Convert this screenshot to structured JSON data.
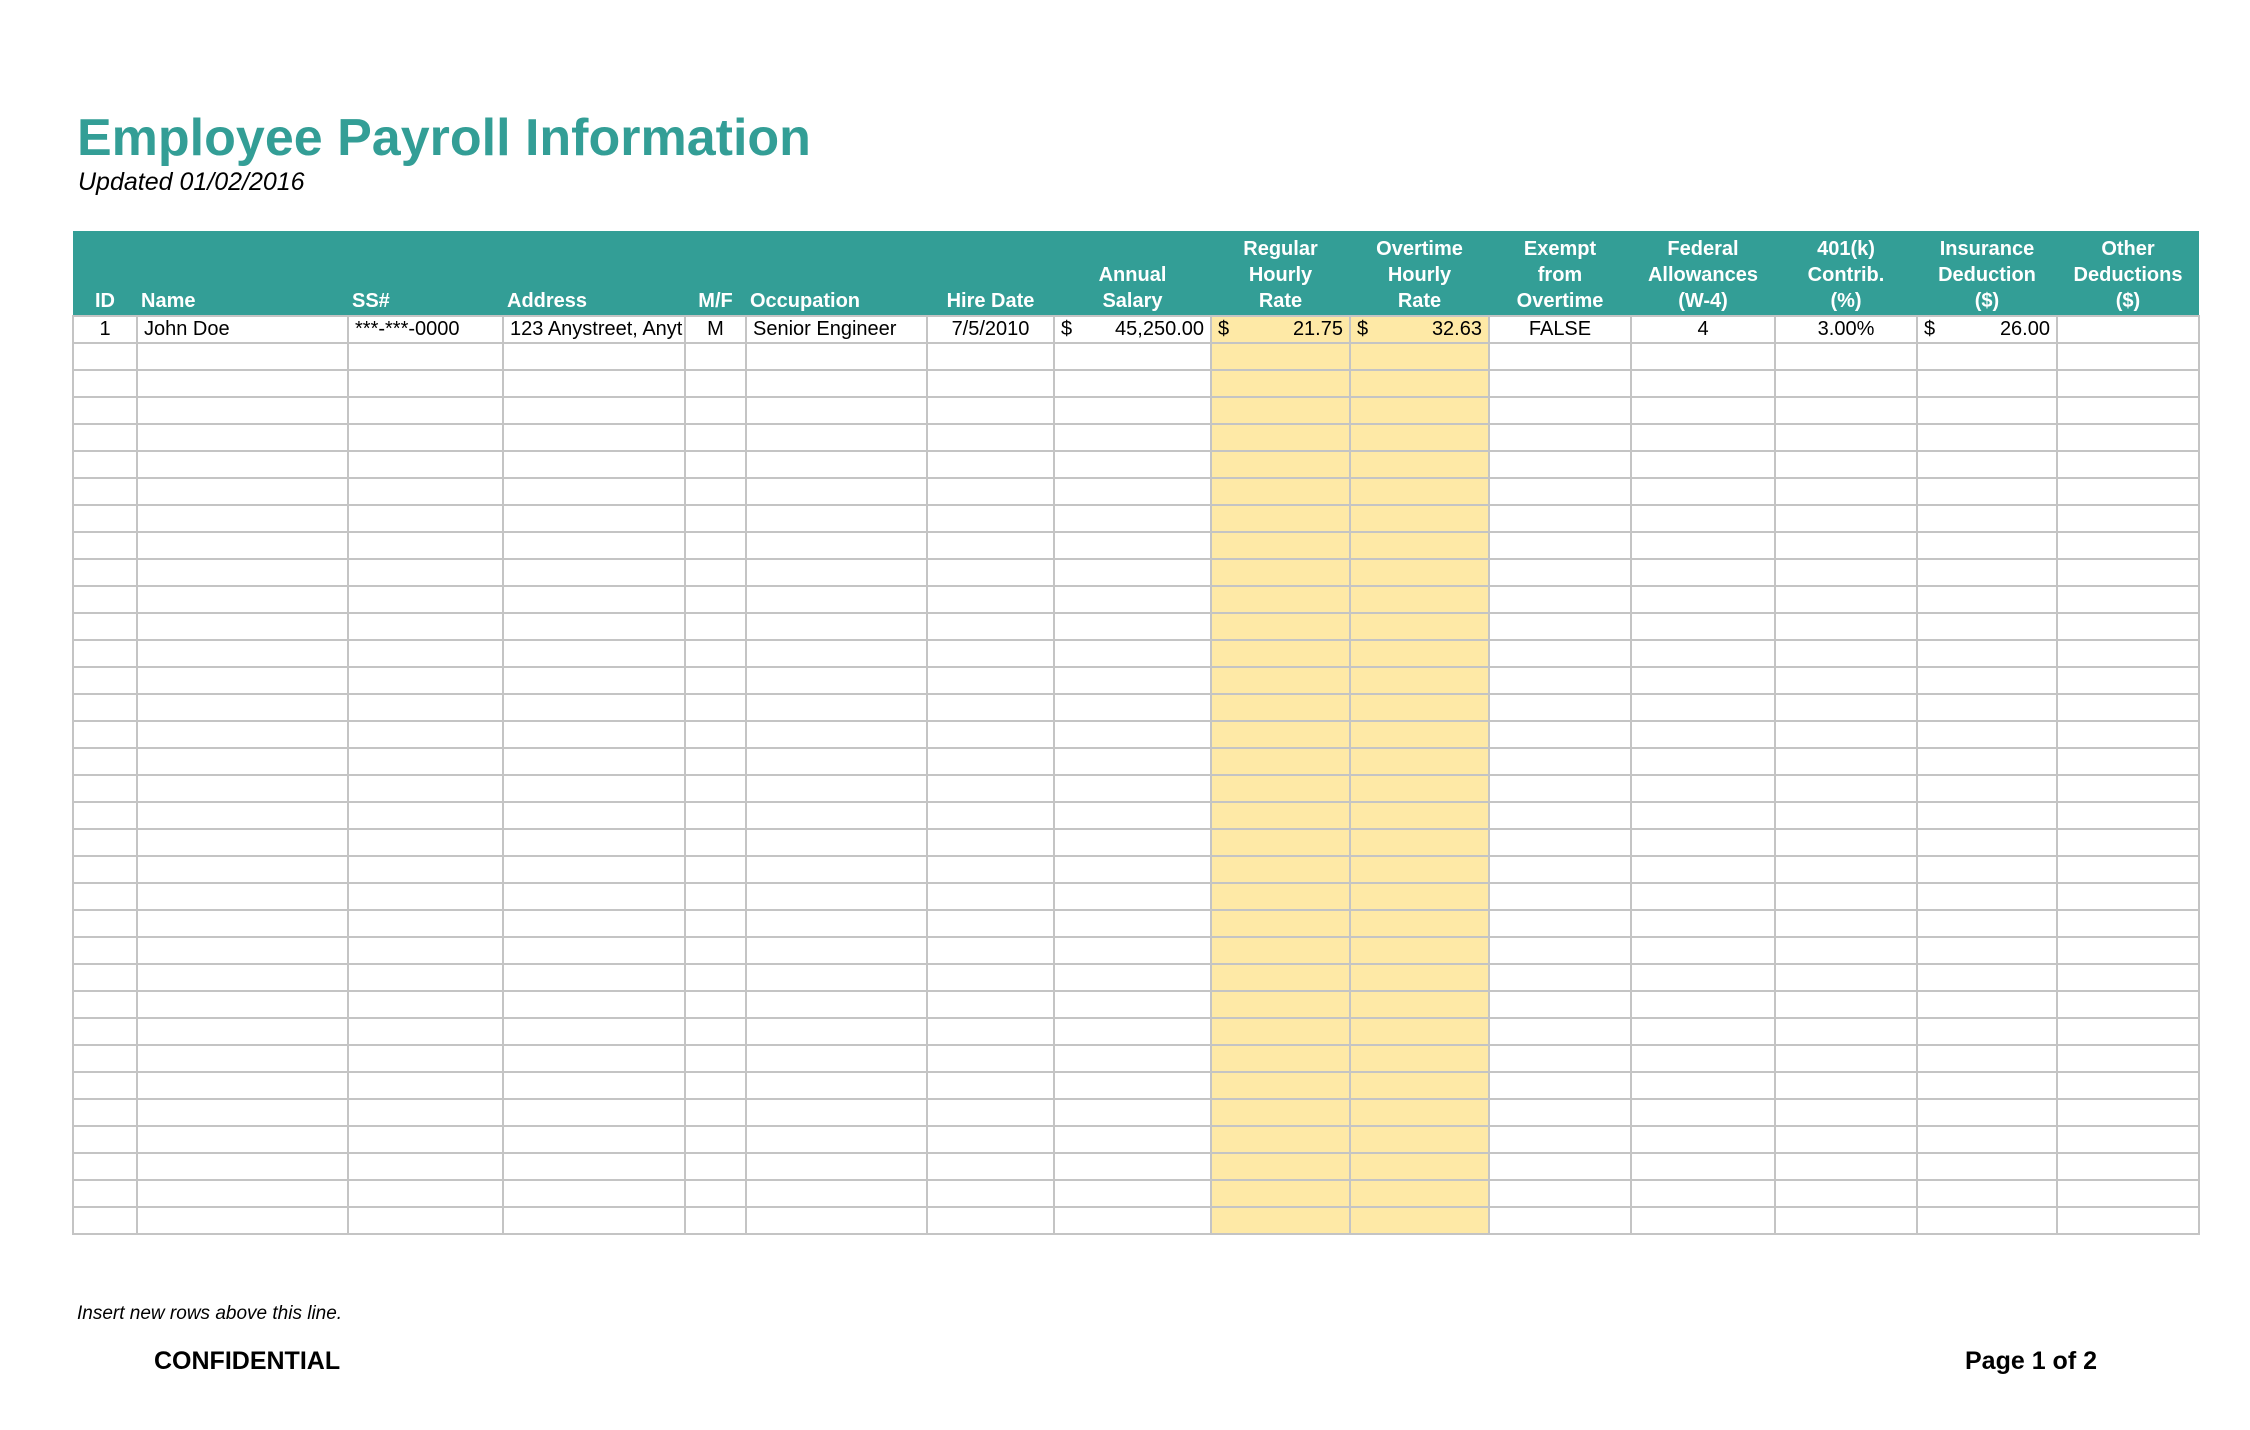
{
  "title": "Employee Payroll Information",
  "subtitle": "Updated 01/02/2016",
  "colors": {
    "header": "#339e96",
    "highlight": "#fee9a6",
    "grid": "#c4c4c4"
  },
  "columns": [
    {
      "label": "ID",
      "align": "center"
    },
    {
      "label": "Name",
      "align": "left"
    },
    {
      "label": "SS#",
      "align": "left"
    },
    {
      "label": "Address",
      "align": "left"
    },
    {
      "label": "M/F",
      "align": "center"
    },
    {
      "label": "Occupation",
      "align": "left"
    },
    {
      "label": "Hire Date",
      "align": "center"
    },
    {
      "label": "Annual\nSalary",
      "align": "center"
    },
    {
      "label": "Regular\nHourly\nRate",
      "align": "center"
    },
    {
      "label": "Overtime\nHourly\nRate",
      "align": "center"
    },
    {
      "label": "Exempt\nfrom\nOvertime",
      "align": "center"
    },
    {
      "label": "Federal\nAllowances\n(W-4)",
      "align": "center"
    },
    {
      "label": "401(k)\nContrib.\n(%)",
      "align": "center"
    },
    {
      "label": "Insurance\nDeduction\n($)",
      "align": "center"
    },
    {
      "label": "Other\nDeductions\n($)",
      "align": "center"
    }
  ],
  "rows": [
    [
      "1",
      "John Doe",
      "***-***-0000",
      "123 Anystreet, Anyt",
      "M",
      "Senior Engineer",
      "7/5/2010",
      "$|45,250.00",
      "$|21.75",
      "$|32.63",
      "FALSE",
      "4",
      "3.00%",
      "$|26.00",
      ""
    ]
  ],
  "empty_row_count": 33,
  "footer": {
    "note": "Insert new rows above this line.",
    "confidential": "CONFIDENTIAL",
    "page": "Page 1 of 2"
  }
}
